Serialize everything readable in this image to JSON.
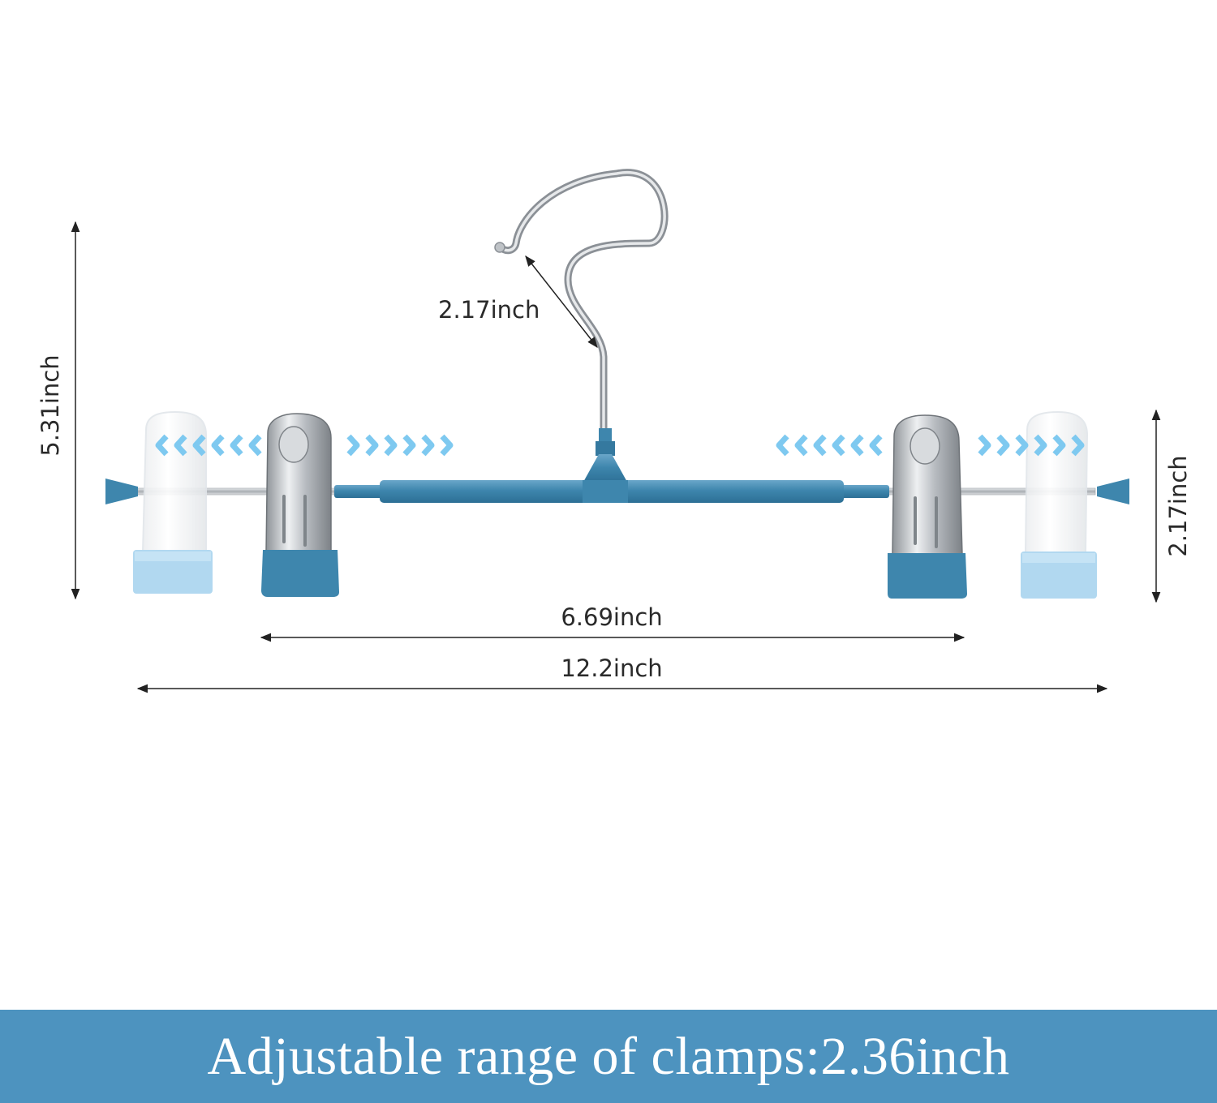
{
  "dimensions": {
    "hook_size": "2.17inch",
    "total_height": "5.31inch",
    "clip_height": "2.17inch",
    "inner_span": "6.69inch",
    "total_width": "12.2inch"
  },
  "banner": {
    "text": "Adjustable range of clamps:2.36inch"
  },
  "colors": {
    "accent_blue": "#3e86ad",
    "light_blue": "#a9d4ef",
    "arrow_blue": "#7ec9f0",
    "banner_bg": "#4d93bf",
    "chrome": "#c9ccd0"
  }
}
